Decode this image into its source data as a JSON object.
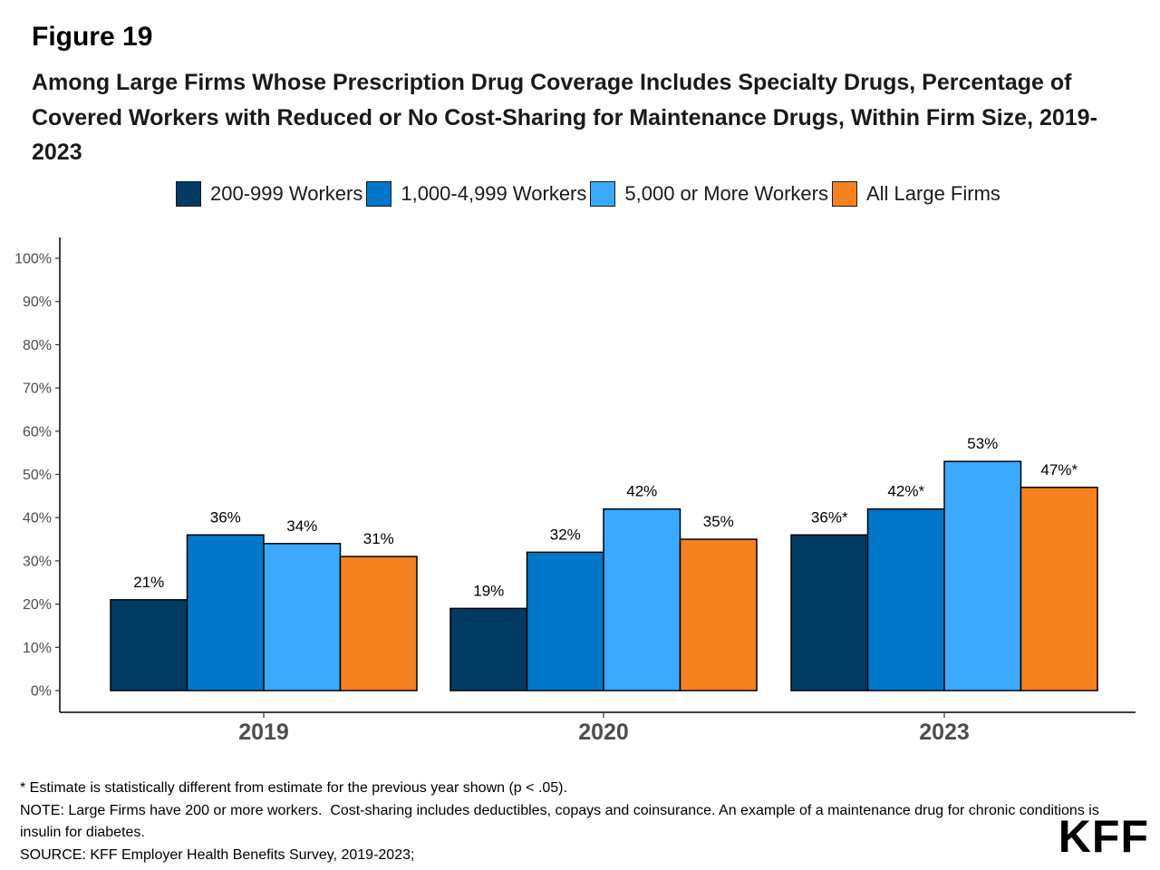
{
  "figure_label": "Figure 19",
  "title": "Among Large Firms Whose Prescription Drug Coverage Includes Specialty Drugs, Percentage of Covered Workers with Reduced or No Cost-Sharing for Maintenance Drugs, Within Firm Size, 2019-2023",
  "legend": [
    {
      "label": "200-999 Workers",
      "color": "#003B62"
    },
    {
      "label": "1,000-4,999 Workers",
      "color": "#0077C8"
    },
    {
      "label": "5,000 or More Workers",
      "color": "#3BA9FF"
    },
    {
      "label": "All Large Firms",
      "color": "#F5821F"
    }
  ],
  "chart_data": {
    "type": "bar",
    "categories": [
      "2019",
      "2020",
      "2023"
    ],
    "series": [
      {
        "name": "200-999 Workers",
        "values": [
          21,
          19,
          36
        ],
        "labels": [
          "21%",
          "19%",
          "36%*"
        ],
        "color": "#003B62"
      },
      {
        "name": "1,000-4,999 Workers",
        "values": [
          36,
          32,
          42
        ],
        "labels": [
          "36%",
          "32%",
          "42%*"
        ],
        "color": "#0077C8"
      },
      {
        "name": "5,000 or More Workers",
        "values": [
          34,
          42,
          53
        ],
        "labels": [
          "34%",
          "42%",
          "53%"
        ],
        "color": "#3BA9FF"
      },
      {
        "name": "All Large Firms",
        "values": [
          31,
          35,
          47
        ],
        "labels": [
          "31%",
          "35%",
          "47%*"
        ],
        "color": "#F5821F"
      }
    ],
    "ylim": [
      0,
      100
    ],
    "yticks": [
      "0%",
      "10%",
      "20%",
      "30%",
      "40%",
      "50%",
      "60%",
      "70%",
      "80%",
      "90%",
      "100%"
    ],
    "grid": false,
    "legend_position": "top"
  },
  "notes": [
    "* Estimate is statistically different from estimate for the previous year shown (p < .05).",
    "NOTE: Large Firms have 200 or more workers.  Cost-sharing includes deductibles, copays and coinsurance. An example of a maintenance drug for chronic conditions is insulin for diabetes.",
    "SOURCE: KFF Employer Health Benefits Survey, 2019-2023;"
  ],
  "logo": "KFF"
}
